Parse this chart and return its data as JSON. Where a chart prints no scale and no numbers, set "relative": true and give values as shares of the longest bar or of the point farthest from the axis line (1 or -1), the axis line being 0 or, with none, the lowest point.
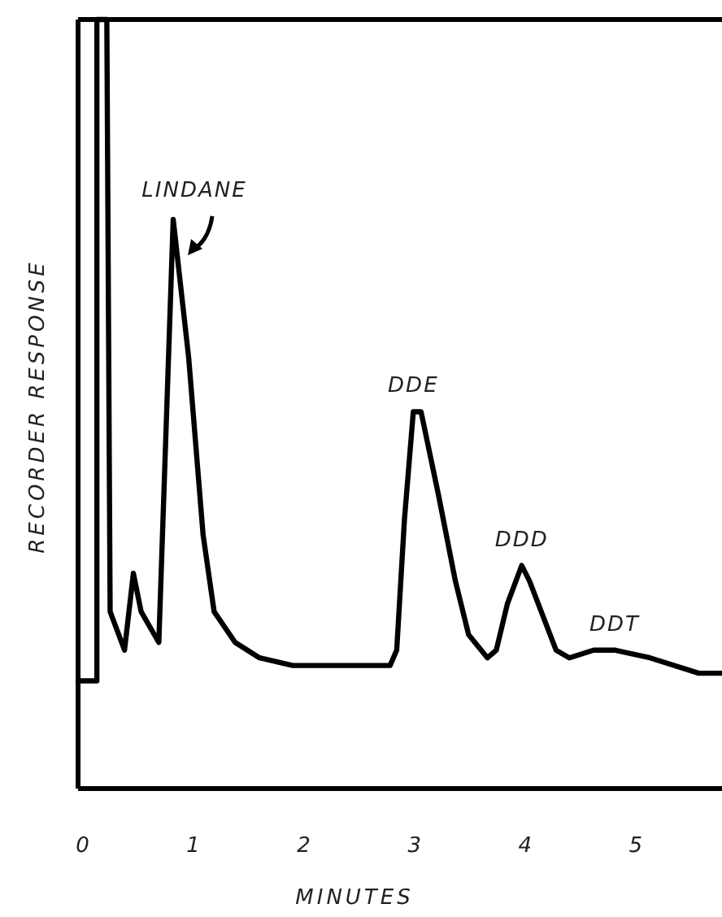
{
  "chart_data": {
    "type": "line",
    "relative": true,
    "xlabel": "MINUTES",
    "ylabel": "RECORDER RESPONSE",
    "xlim": [
      -0.04,
      5.78
    ],
    "xticks": [
      0,
      1,
      2,
      3,
      4,
      5
    ],
    "grid": false,
    "marker": "none",
    "line_style": "solid",
    "x": [
      -0.04,
      0.13,
      0.13,
      0.22,
      0.25,
      0.38,
      0.46,
      0.53,
      0.69,
      0.82,
      0.96,
      1.09,
      1.19,
      1.38,
      1.6,
      1.9,
      2.78,
      2.84,
      2.91,
      2.99,
      3.06,
      3.22,
      3.37,
      3.49,
      3.66,
      3.74,
      3.84,
      3.97,
      4.04,
      4.28,
      4.4,
      4.62,
      4.81,
      5.13,
      5.57,
      5.78
    ],
    "series": [
      {
        "color": "#000000",
        "values": [
          0.14,
          0.14,
          1.0,
          1.0,
          0.23,
          0.18,
          0.28,
          0.23,
          0.19,
          0.74,
          0.56,
          0.33,
          0.23,
          0.19,
          0.17,
          0.16,
          0.16,
          0.18,
          0.35,
          0.49,
          0.49,
          0.38,
          0.27,
          0.2,
          0.17,
          0.18,
          0.24,
          0.29,
          0.27,
          0.18,
          0.17,
          0.18,
          0.18,
          0.17,
          0.15,
          0.15
        ]
      }
    ],
    "annotations": [
      {
        "text": "LINDANE",
        "x": 0.82,
        "y": 0.74
      },
      {
        "text": "DDE",
        "x": 2.99,
        "y": 0.49
      },
      {
        "text": "DDD",
        "x": 3.97,
        "y": 0.29
      },
      {
        "text": "DDT",
        "x": 4.81,
        "y": 0.18
      }
    ]
  }
}
